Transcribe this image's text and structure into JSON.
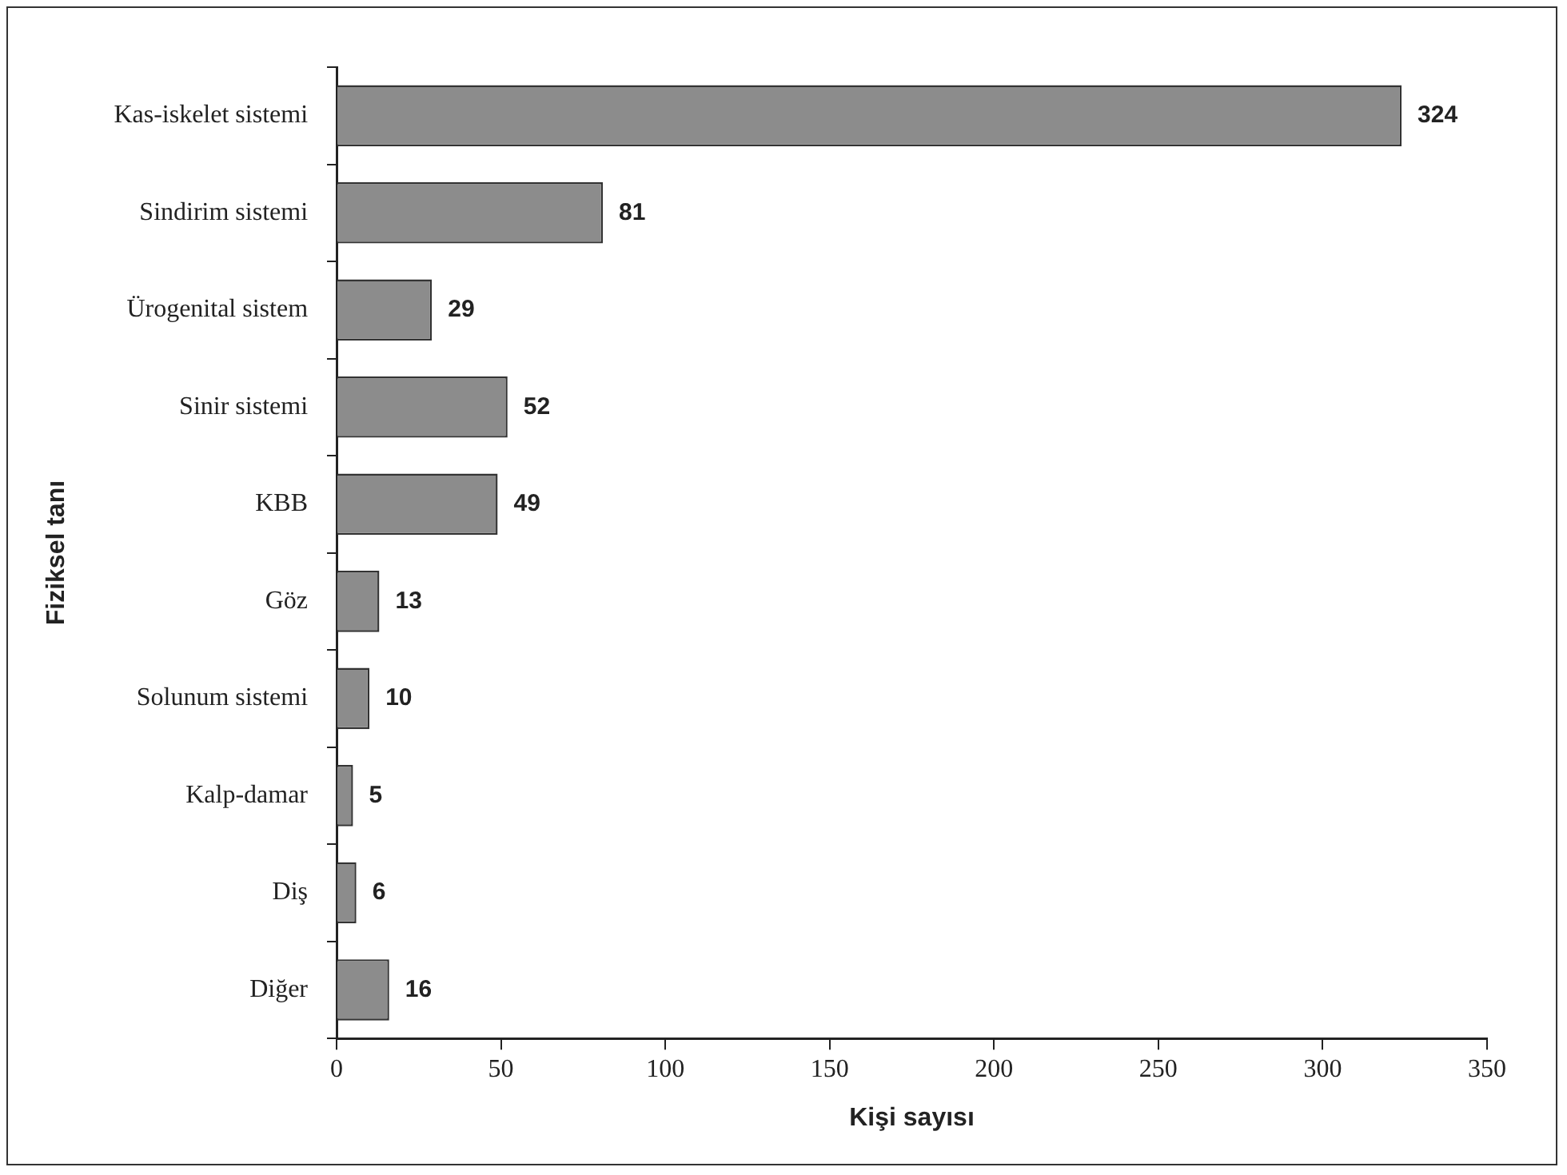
{
  "chart_data": {
    "type": "bar",
    "orientation": "horizontal",
    "xlabel": "Kişi sayısı",
    "ylabel": "Fiziksel tanı",
    "categories": [
      "Kas-iskelet sistemi",
      "Sindirim sistemi",
      "Ürogenital sistem",
      "Sinir sistemi",
      "KBB",
      "Göz",
      "Solunum sistemi",
      "Kalp-damar",
      "Diş",
      "Diğer"
    ],
    "values": [
      324,
      81,
      29,
      52,
      49,
      13,
      10,
      5,
      6,
      16
    ],
    "color": "#8c8c8c",
    "xlim": [
      0,
      350
    ],
    "xticks": [
      0,
      50,
      100,
      150,
      200,
      250,
      300,
      350
    ],
    "data_labels": true,
    "grid": false,
    "legend": false
  }
}
